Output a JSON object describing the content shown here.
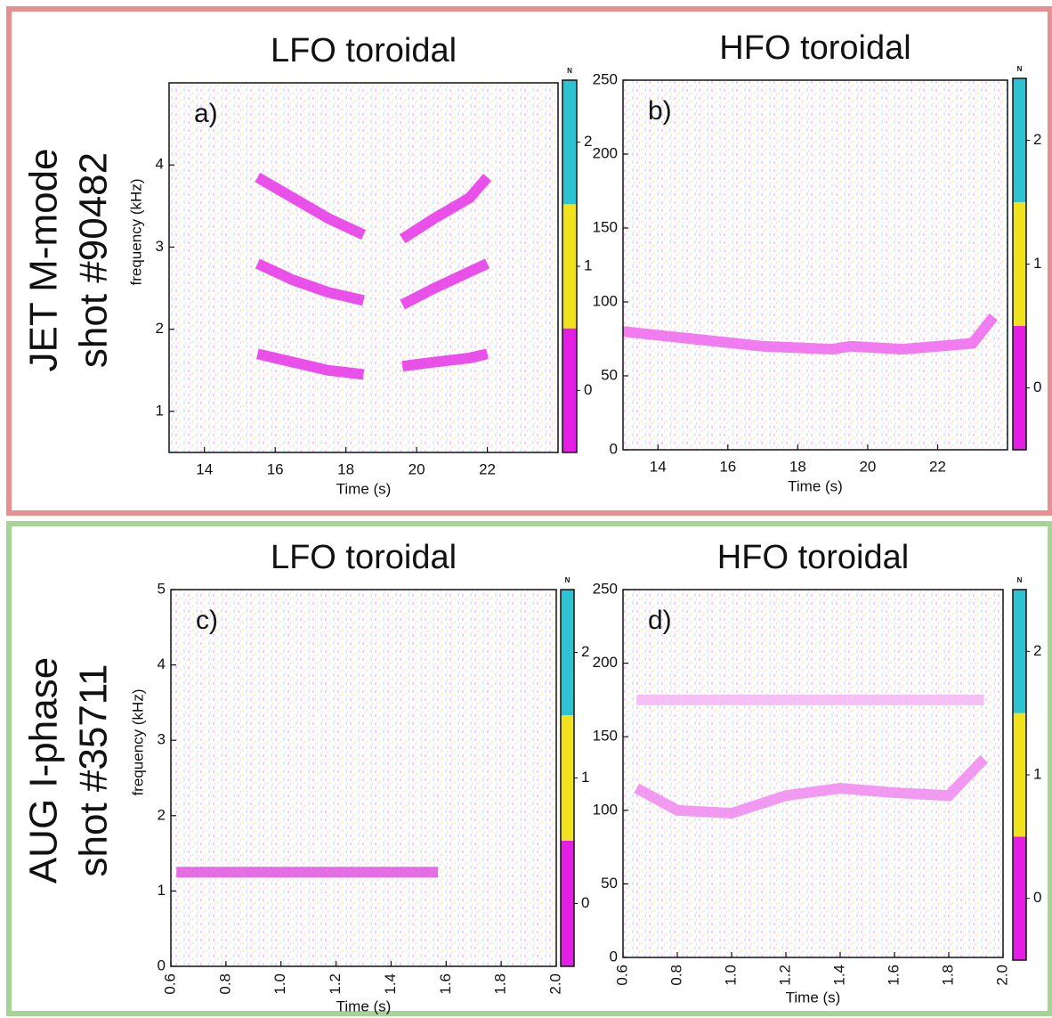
{
  "rows": [
    {
      "lines": [
        "JET M-mode",
        "shot #90482"
      ]
    },
    {
      "lines": [
        "AUG I-phase",
        "shot #35711"
      ]
    }
  ],
  "chart_data": [
    {
      "type": "spectrogram",
      "title": "LFO toroidal",
      "panel_label": "a)",
      "xlabel": "Time (s)",
      "ylabel": "frequency (kHz)",
      "xlim": [
        13,
        24
      ],
      "xticks": [
        14,
        16,
        18,
        20,
        22
      ],
      "ylim": [
        0.5,
        5
      ],
      "yticks": [
        1,
        2,
        3,
        4
      ],
      "x": [
        15.5,
        16.5,
        17.5,
        18.5,
        19.2,
        19.6,
        20.5,
        21.5,
        22
      ],
      "series": [
        {
          "color": "#e633e6",
          "values": [
            1.7,
            1.6,
            1.5,
            1.45,
            null,
            1.55,
            1.6,
            1.65,
            1.7
          ]
        },
        {
          "color": "#e633e6",
          "values": [
            2.8,
            2.6,
            2.45,
            2.35,
            null,
            2.3,
            2.5,
            2.7,
            2.8
          ]
        },
        {
          "color": "#e633e6",
          "values": [
            3.85,
            3.6,
            3.35,
            3.15,
            null,
            3.1,
            3.35,
            3.6,
            3.85
          ]
        }
      ],
      "colorbar": {
        "label": "N",
        "lim": [
          -0.5,
          2.5
        ],
        "ticks": [
          0,
          1,
          2
        ],
        "colors": [
          "#e51ee5",
          "#f2e21c",
          "#2ec3d3"
        ]
      }
    },
    {
      "type": "spectrogram",
      "title": "HFO toroidal",
      "panel_label": "b)",
      "xlabel": "Time (s)",
      "xlim": [
        13,
        24
      ],
      "xticks": [
        14,
        16,
        18,
        20,
        22
      ],
      "ylim": [
        0,
        250
      ],
      "yticks": [
        0,
        50,
        100,
        150,
        200,
        250
      ],
      "x": [
        13,
        15,
        17,
        19,
        19.5,
        21,
        23,
        23.6
      ],
      "series": [
        {
          "color": "#ee66ee",
          "values": [
            80,
            75,
            70,
            68,
            70,
            68,
            72,
            90
          ]
        }
      ],
      "colorbar": {
        "label": "N",
        "lim": [
          -0.5,
          2.5
        ],
        "ticks": [
          0,
          1,
          2
        ],
        "colors": [
          "#e51ee5",
          "#f2e21c",
          "#2ec3d3"
        ]
      }
    },
    {
      "type": "spectrogram",
      "title": "LFO toroidal",
      "panel_label": "c)",
      "xlabel": "Time (s)",
      "ylabel": "frequency (kHz)",
      "xlim": [
        0.6,
        2.0
      ],
      "xticks": [
        0.6,
        0.8,
        {
          "value": 1,
          "label": "1.0"
        },
        1.2,
        1.4,
        1.6,
        1.8,
        {
          "value": 2,
          "label": "2.0"
        }
      ],
      "x_tick_rotation": 90,
      "ylim": [
        0,
        5
      ],
      "yticks": [
        0,
        1,
        2,
        3,
        4,
        5
      ],
      "x": [
        0.62,
        1.57
      ],
      "series": [
        {
          "color": "#e055e0",
          "values": [
            1.25,
            1.25
          ]
        }
      ],
      "colorbar": {
        "label": "N",
        "lim": [
          -0.5,
          2.5
        ],
        "ticks": [
          0,
          1,
          2
        ],
        "colors": [
          "#e51ee5",
          "#f2e21c",
          "#2ec3d3"
        ]
      }
    },
    {
      "type": "spectrogram",
      "title": "HFO toroidal",
      "panel_label": "d)",
      "xlabel": "Time (s)",
      "xlim": [
        0.6,
        2.0
      ],
      "xticks": [
        0.6,
        0.8,
        {
          "value": 1,
          "label": "1.0"
        },
        1.2,
        1.4,
        1.6,
        1.8,
        {
          "value": 2,
          "label": "2.0"
        }
      ],
      "x_tick_rotation": 90,
      "ylim": [
        0,
        250
      ],
      "yticks": [
        0,
        50,
        100,
        150,
        200,
        250
      ],
      "x": [
        0.65,
        0.8,
        1.0,
        1.2,
        1.4,
        1.6,
        1.8,
        1.93
      ],
      "series": [
        {
          "color": "#f088f0",
          "values": [
            115,
            100,
            98,
            110,
            115,
            112,
            110,
            135
          ]
        },
        {
          "color": "#f3b5f3",
          "values": [
            175,
            175,
            175,
            175,
            175,
            175,
            175,
            175
          ]
        }
      ],
      "colorbar": {
        "label": "N",
        "lim": [
          -0.5,
          2.5
        ],
        "ticks": [
          0,
          1,
          2
        ],
        "colors": [
          "#e51ee5",
          "#f2e21c",
          "#2ec3d3"
        ]
      }
    }
  ]
}
